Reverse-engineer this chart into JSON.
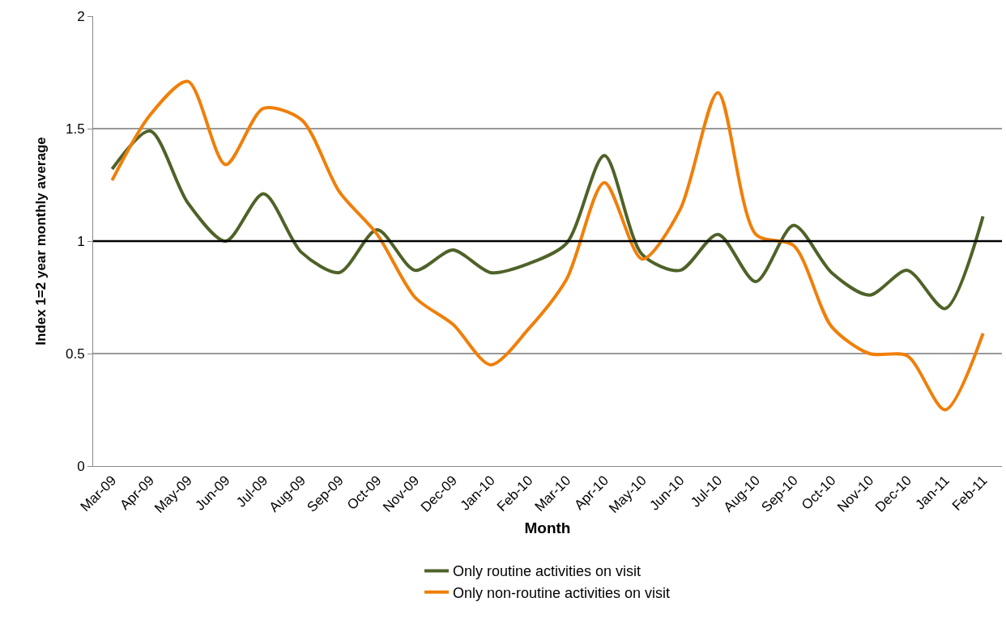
{
  "chart_data": {
    "type": "line",
    "xlabel": "Month",
    "ylabel": "Index 1=2 year monthly average",
    "categories": [
      "Mar-09",
      "Apr-09",
      "May-09",
      "Jun-09",
      "Jul-09",
      "Aug-09",
      "Sep-09",
      "Oct-09",
      "Nov-09",
      "Dec-09",
      "Jan-10",
      "Feb-10",
      "Mar-10",
      "Apr-10",
      "May-10",
      "Jun-10",
      "Jul-10",
      "Aug-10",
      "Sep-10",
      "Oct-10",
      "Nov-10",
      "Dec-10",
      "Jan-11",
      "Feb-11"
    ],
    "series": [
      {
        "name": "Only routine activities on visit",
        "color": "#4f6228",
        "values": [
          1.32,
          1.49,
          1.17,
          1.0,
          1.21,
          0.95,
          0.86,
          1.05,
          0.87,
          0.96,
          0.86,
          0.9,
          0.99,
          1.38,
          0.94,
          0.87,
          1.03,
          0.82,
          1.07,
          0.86,
          0.76,
          0.87,
          0.7,
          1.11
        ]
      },
      {
        "name": "Only non-routine activities on visit",
        "color": "#f07f09",
        "values": [
          1.27,
          1.56,
          1.71,
          1.34,
          1.59,
          1.54,
          1.22,
          1.03,
          0.75,
          0.63,
          0.45,
          0.61,
          0.83,
          1.26,
          0.92,
          1.14,
          1.66,
          1.03,
          0.98,
          0.62,
          0.5,
          0.49,
          0.25,
          0.59
        ]
      }
    ],
    "ylim": [
      0,
      2
    ],
    "yticks": [
      0,
      0.5,
      1,
      1.5,
      2
    ],
    "grid": "y",
    "legend": "bottom",
    "marker": "none",
    "line_style": "solid",
    "ref_lines": [
      {
        "axis": "y",
        "value": 1,
        "color": "#000000"
      }
    ]
  }
}
